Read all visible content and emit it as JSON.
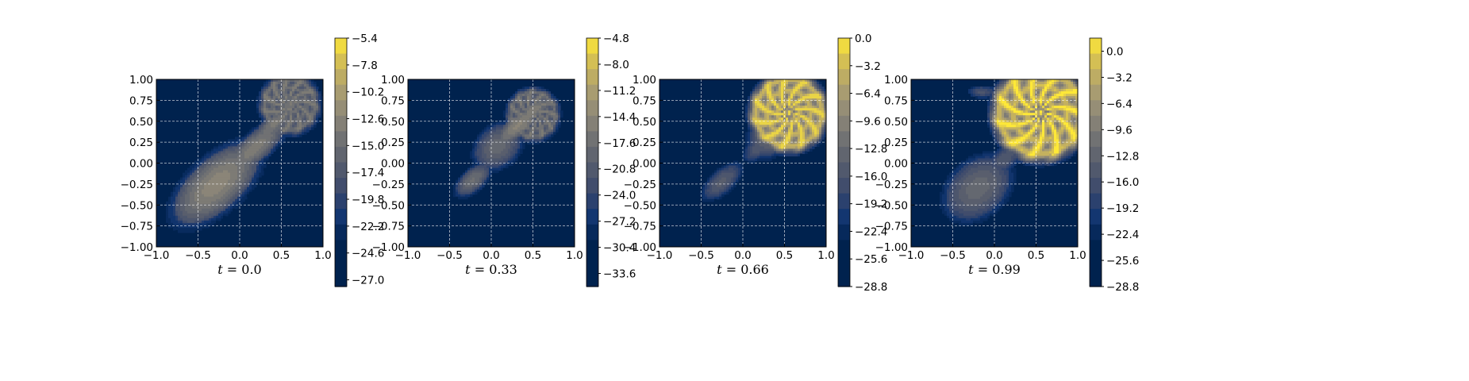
{
  "chart_data": [
    {
      "type": "heatmap",
      "title": "t = 0.0",
      "title_parts": {
        "var": "t",
        "eq": " = ",
        "val": "0.0"
      },
      "xlim": [
        -1.0,
        1.0
      ],
      "ylim": [
        -1.0,
        1.0
      ],
      "xticks": [
        "−1.0",
        "−0.5",
        "0.0",
        "0.5",
        "1.0"
      ],
      "yticks": [
        "1.00",
        "0.75",
        "0.50",
        "0.25",
        "0.00",
        "−0.25",
        "−0.50",
        "−0.75",
        "−1.00"
      ],
      "grid": true,
      "colormap": "cividis",
      "colorbar": {
        "min": -27.6,
        "max": -5.4,
        "ticks": [
          "−5.4",
          "−7.8",
          "−10.2",
          "−12.6",
          "−15.0",
          "−17.4",
          "−19.8",
          "−22.2",
          "−24.6",
          "−27.0"
        ],
        "tick_values": [
          -5.4,
          -7.8,
          -10.2,
          -12.6,
          -15.0,
          -17.4,
          -19.8,
          -22.2,
          -24.6,
          -27.0
        ]
      },
      "features": [
        {
          "shape": "blob",
          "cx": -0.28,
          "cy": -0.25,
          "rx": 0.62,
          "ry": 0.3,
          "angle": 42,
          "peak": 0.62
        },
        {
          "shape": "blob",
          "cx": 0.18,
          "cy": 0.18,
          "rx": 0.5,
          "ry": 0.16,
          "angle": 42,
          "peak": 0.56
        },
        {
          "shape": "blob",
          "cx": 0.42,
          "cy": 0.47,
          "rx": 0.36,
          "ry": 0.11,
          "angle": 42,
          "peak": 0.54
        },
        {
          "shape": "blob",
          "cx": 0.6,
          "cy": 0.7,
          "rx": 0.24,
          "ry": 0.09,
          "angle": 42,
          "peak": 0.52
        },
        {
          "shape": "fan",
          "cx": 0.6,
          "cy": 0.7,
          "r": 0.32,
          "peak": 0.56
        }
      ]
    },
    {
      "type": "heatmap",
      "title": "t = 0.33",
      "title_parts": {
        "var": "t",
        "eq": " = ",
        "val": "0.33"
      },
      "xlim": [
        -1.0,
        1.0
      ],
      "ylim": [
        -1.0,
        1.0
      ],
      "xticks": [
        "−1.0",
        "−0.5",
        "0.0",
        "0.5",
        "1.0"
      ],
      "yticks": [
        "1.00",
        "0.75",
        "0.50",
        "0.25",
        "0.00",
        "−0.25",
        "−0.50",
        "−0.75",
        "−1.00"
      ],
      "grid": true,
      "colormap": "cividis",
      "colorbar": {
        "min": -35.2,
        "max": -4.8,
        "ticks": [
          "−4.8",
          "−8.0",
          "−11.2",
          "−14.4",
          "−17.6",
          "−20.8",
          "−24.0",
          "−27.2",
          "−30.4",
          "−33.6"
        ],
        "tick_values": [
          -4.8,
          -8.0,
          -11.2,
          -14.4,
          -17.6,
          -20.8,
          -24.0,
          -27.2,
          -30.4,
          -33.6
        ]
      },
      "features": [
        {
          "shape": "blob",
          "cx": -0.22,
          "cy": -0.2,
          "rx": 0.24,
          "ry": 0.12,
          "angle": 42,
          "peak": 0.48
        },
        {
          "shape": "blob",
          "cx": 0.08,
          "cy": 0.2,
          "rx": 0.3,
          "ry": 0.22,
          "angle": 42,
          "peak": 0.45
        },
        {
          "shape": "blob",
          "cx": 0.32,
          "cy": 0.45,
          "rx": 0.36,
          "ry": 0.12,
          "angle": 42,
          "peak": 0.6
        },
        {
          "shape": "blob",
          "cx": 0.5,
          "cy": 0.62,
          "rx": 0.26,
          "ry": 0.1,
          "angle": 42,
          "peak": 0.58
        },
        {
          "shape": "fan",
          "cx": 0.5,
          "cy": 0.58,
          "r": 0.28,
          "peak": 0.55
        }
      ]
    },
    {
      "type": "heatmap",
      "title": "t = 0.66",
      "title_parts": {
        "var": "t",
        "eq": " = ",
        "val": "0.66"
      },
      "xlim": [
        -1.0,
        1.0
      ],
      "ylim": [
        -1.0,
        1.0
      ],
      "xticks": [
        "−1.0",
        "−0.5",
        "0.0",
        "0.5",
        "1.0"
      ],
      "yticks": [
        "1.00",
        "0.75",
        "0.50",
        "0.25",
        "0.00",
        "−0.25",
        "−0.50",
        "−0.75",
        "−1.00"
      ],
      "grid": true,
      "colormap": "cividis",
      "colorbar": {
        "min": -28.8,
        "max": 0.0,
        "ticks": [
          "0.0",
          "−3.2",
          "−6.4",
          "−9.6",
          "−12.8",
          "−16.0",
          "−19.2",
          "−22.4",
          "−25.6",
          "−28.8"
        ],
        "tick_values": [
          0.0,
          -3.2,
          -6.4,
          -9.6,
          -12.8,
          -16.0,
          -19.2,
          -22.4,
          -25.6,
          -28.8
        ]
      },
      "features": [
        {
          "shape": "blob",
          "cx": -0.25,
          "cy": -0.22,
          "rx": 0.26,
          "ry": 0.12,
          "angle": 42,
          "peak": 0.38
        },
        {
          "shape": "blob",
          "cx": 0.18,
          "cy": 0.18,
          "rx": 0.18,
          "ry": 0.1,
          "angle": 42,
          "peak": 0.35
        },
        {
          "shape": "blob",
          "cx": 0.35,
          "cy": 0.35,
          "rx": 0.3,
          "ry": 0.22,
          "angle": 42,
          "peak": 0.48
        },
        {
          "shape": "fan",
          "cx": 0.55,
          "cy": 0.6,
          "r": 0.42,
          "peak": 0.97
        }
      ]
    },
    {
      "type": "heatmap",
      "title": "t = 0.99",
      "title_parts": {
        "var": "t",
        "eq": " = ",
        "val": "0.99"
      },
      "xlim": [
        -1.0,
        1.0
      ],
      "ylim": [
        -1.0,
        1.0
      ],
      "xticks": [
        "−1.0",
        "−0.5",
        "0.0",
        "0.5",
        "1.0"
      ],
      "yticks": [
        "1.00",
        "0.75",
        "0.50",
        "0.25",
        "0.00",
        "−0.25",
        "−0.50",
        "−0.75",
        "−1.00"
      ],
      "grid": true,
      "colormap": "cividis",
      "colorbar": {
        "min": -28.8,
        "max": 1.6,
        "ticks": [
          "0.0",
          "−3.2",
          "−6.4",
          "−9.6",
          "−12.8",
          "−16.0",
          "−19.2",
          "−22.4",
          "−25.6",
          "−28.8"
        ],
        "tick_values": [
          0.0,
          -3.2,
          -6.4,
          -9.6,
          -12.8,
          -16.0,
          -19.2,
          -22.4,
          -25.6,
          -28.8
        ]
      },
      "features": [
        {
          "shape": "blob",
          "cx": -0.2,
          "cy": -0.3,
          "rx": 0.42,
          "ry": 0.3,
          "angle": 42,
          "peak": 0.45
        },
        {
          "shape": "blob",
          "cx": 0.12,
          "cy": 0.05,
          "rx": 0.25,
          "ry": 0.12,
          "angle": 42,
          "peak": 0.35
        },
        {
          "shape": "blob",
          "cx": -0.15,
          "cy": 0.85,
          "rx": 0.14,
          "ry": 0.06,
          "angle": 0,
          "peak": 0.32
        },
        {
          "shape": "fan",
          "cx": 0.55,
          "cy": 0.6,
          "r": 0.52,
          "peak": 1.0
        }
      ]
    }
  ]
}
